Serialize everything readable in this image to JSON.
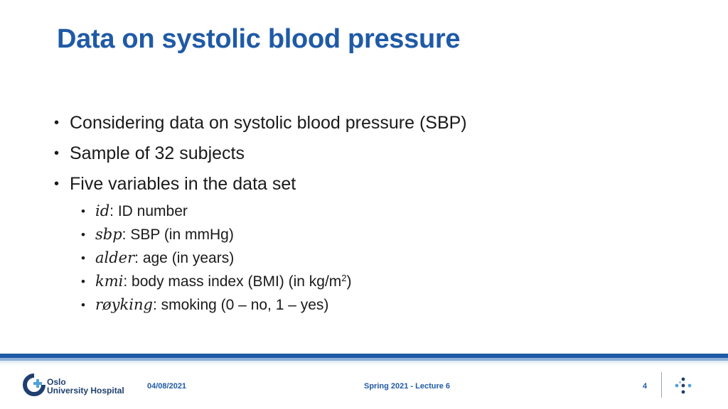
{
  "slide": {
    "title": "Data on systolic blood pressure",
    "bullets": [
      "Considering data on systolic blood pressure (SBP)",
      "Sample of 32 subjects",
      "Five variables in the data set"
    ],
    "variables": [
      {
        "name": "id",
        "desc": ": ID number"
      },
      {
        "name": "sbp",
        "desc": ": SBP (in mmHg)"
      },
      {
        "name": "alder",
        "desc": ": age (in years)"
      },
      {
        "name": "kmi",
        "desc": ": body mass index (BMI) (in kg/m",
        "sup": "2",
        "tail": ")"
      },
      {
        "name": "røyking",
        "desc": ": smoking (0 – no, 1 – yes)"
      }
    ]
  },
  "footer": {
    "logo_line1": "Oslo",
    "logo_line2": "University Hospital",
    "date": "04/08/2021",
    "lecture": "Spring 2021 - Lecture 6",
    "page": "4"
  },
  "colors": {
    "accent": "#1f5aa6",
    "logo_dark": "#1f3f6e",
    "logo_light": "#4fa3d9"
  }
}
